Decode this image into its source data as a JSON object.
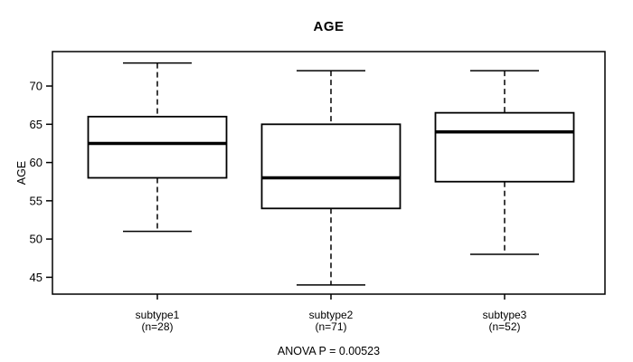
{
  "chart_data": {
    "type": "boxplot",
    "title": "AGE",
    "ylabel": "AGE",
    "annotation": "ANOVA P = 0.00523",
    "line_color": "#000000",
    "box_fill": "#ffffff",
    "yticks": [
      45,
      50,
      55,
      60,
      65,
      70
    ],
    "ylim": [
      42.8,
      74.5
    ],
    "grid": false,
    "categories": [
      {
        "label": "subtype1",
        "n_label": "(n=28)"
      },
      {
        "label": "subtype2",
        "n_label": "(n=71)"
      },
      {
        "label": "subtype3",
        "n_label": "(n=52)"
      }
    ],
    "series": [
      {
        "name": "subtype1",
        "min": 51,
        "q1": 58,
        "median": 62.5,
        "q3": 66,
        "max": 73
      },
      {
        "name": "subtype2",
        "min": 44,
        "q1": 54,
        "median": 58,
        "q3": 65,
        "max": 72
      },
      {
        "name": "subtype3",
        "min": 48,
        "q1": 57.5,
        "median": 64,
        "q3": 66.5,
        "max": 72
      }
    ]
  }
}
